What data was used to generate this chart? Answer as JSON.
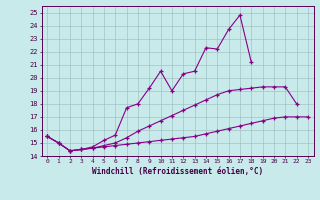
{
  "xlabel": "Windchill (Refroidissement éolien,°C)",
  "bg_color": "#c8eaea",
  "line_color": "#880088",
  "x_values": [
    0,
    1,
    2,
    3,
    4,
    5,
    6,
    7,
    8,
    9,
    10,
    11,
    12,
    13,
    14,
    15,
    16,
    17,
    18,
    19,
    20,
    21,
    22,
    23
  ],
  "curve1": [
    15.5,
    15.0,
    14.4,
    14.5,
    14.6,
    14.7,
    14.8,
    14.9,
    15.0,
    15.1,
    15.2,
    15.3,
    15.4,
    15.5,
    15.7,
    15.9,
    16.1,
    16.3,
    16.5,
    16.7,
    16.9,
    17.0,
    17.0,
    17.0
  ],
  "curve2": [
    15.5,
    15.0,
    14.4,
    14.5,
    14.6,
    14.8,
    15.0,
    15.4,
    15.9,
    16.3,
    16.7,
    17.1,
    17.5,
    17.9,
    18.3,
    18.7,
    19.0,
    19.1,
    19.2,
    19.3,
    19.3,
    19.3,
    18.0,
    null
  ],
  "curve3": [
    15.5,
    15.0,
    14.4,
    14.5,
    14.7,
    15.2,
    15.6,
    17.7,
    18.0,
    19.2,
    20.5,
    19.0,
    20.3,
    20.5,
    22.3,
    22.2,
    23.7,
    24.8,
    21.2,
    null,
    null,
    null,
    null,
    null
  ],
  "ylim": [
    14.0,
    25.5
  ],
  "xlim": [
    -0.5,
    23.5
  ],
  "yticks": [
    14,
    15,
    16,
    17,
    18,
    19,
    20,
    21,
    22,
    23,
    24,
    25
  ],
  "xticks": [
    0,
    1,
    2,
    3,
    4,
    5,
    6,
    7,
    8,
    9,
    10,
    11,
    12,
    13,
    14,
    15,
    16,
    17,
    18,
    19,
    20,
    21,
    22,
    23
  ]
}
